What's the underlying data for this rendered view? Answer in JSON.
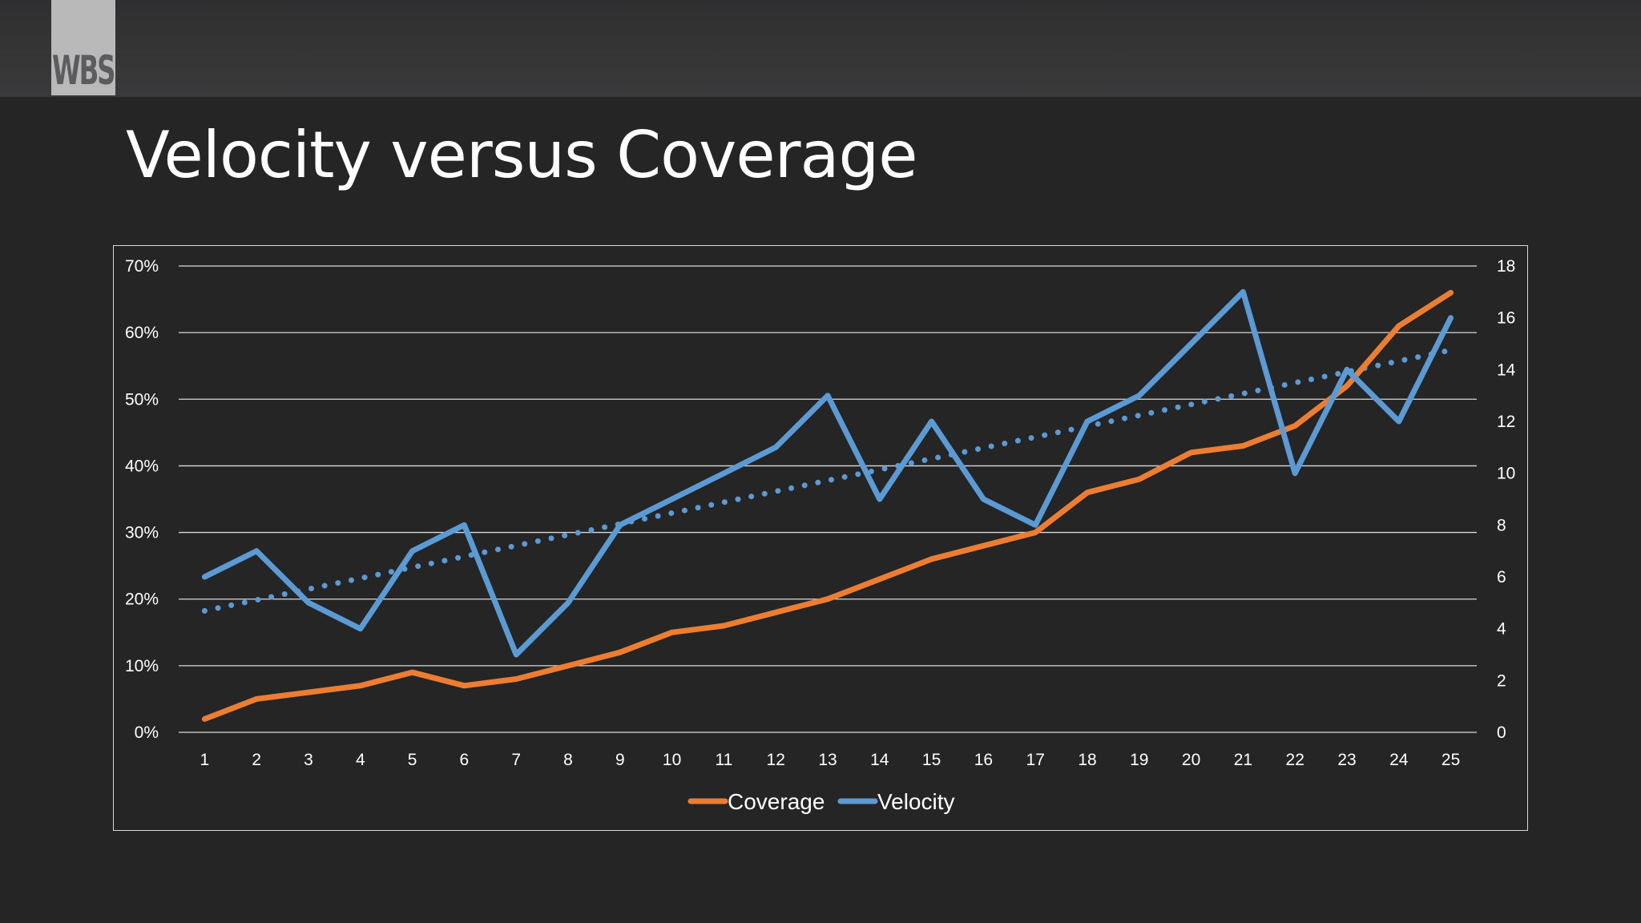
{
  "header": {
    "logo_text": "WBS"
  },
  "slide": {
    "title": "Velocity versus Coverage"
  },
  "chart_data": {
    "type": "line",
    "categories": [
      "1",
      "2",
      "3",
      "4",
      "5",
      "6",
      "7",
      "8",
      "9",
      "10",
      "11",
      "12",
      "13",
      "14",
      "15",
      "16",
      "17",
      "18",
      "19",
      "20",
      "21",
      "22",
      "23",
      "24",
      "25"
    ],
    "left_axis": {
      "ticks": [
        "0%",
        "10%",
        "20%",
        "30%",
        "40%",
        "50%",
        "60%",
        "70%"
      ],
      "ylim": [
        0,
        70
      ]
    },
    "right_axis": {
      "ticks": [
        "0",
        "2",
        "4",
        "6",
        "8",
        "10",
        "12",
        "14",
        "16",
        "18"
      ],
      "ylim": [
        0,
        18
      ]
    },
    "series": [
      {
        "name": "Coverage",
        "axis": "left",
        "color": "#ED7D31",
        "values": [
          2,
          5,
          6,
          7,
          9,
          7,
          8,
          10,
          12,
          15,
          16,
          18,
          20,
          23,
          26,
          28,
          30,
          36,
          38,
          42,
          43,
          46,
          52,
          61,
          66
        ]
      },
      {
        "name": "Velocity",
        "axis": "right",
        "color": "#5B9BD5",
        "values": [
          6,
          7,
          5,
          4,
          7,
          8,
          3,
          5,
          8,
          9,
          10,
          11,
          13,
          9,
          12,
          9,
          8,
          12,
          13,
          15,
          17,
          10,
          14,
          12,
          16
        ]
      }
    ],
    "trendline": {
      "series": "Velocity",
      "type": "linear",
      "style": "dotted",
      "color": "#5B9BD5"
    },
    "grid": true,
    "legend": "bottom-center"
  }
}
